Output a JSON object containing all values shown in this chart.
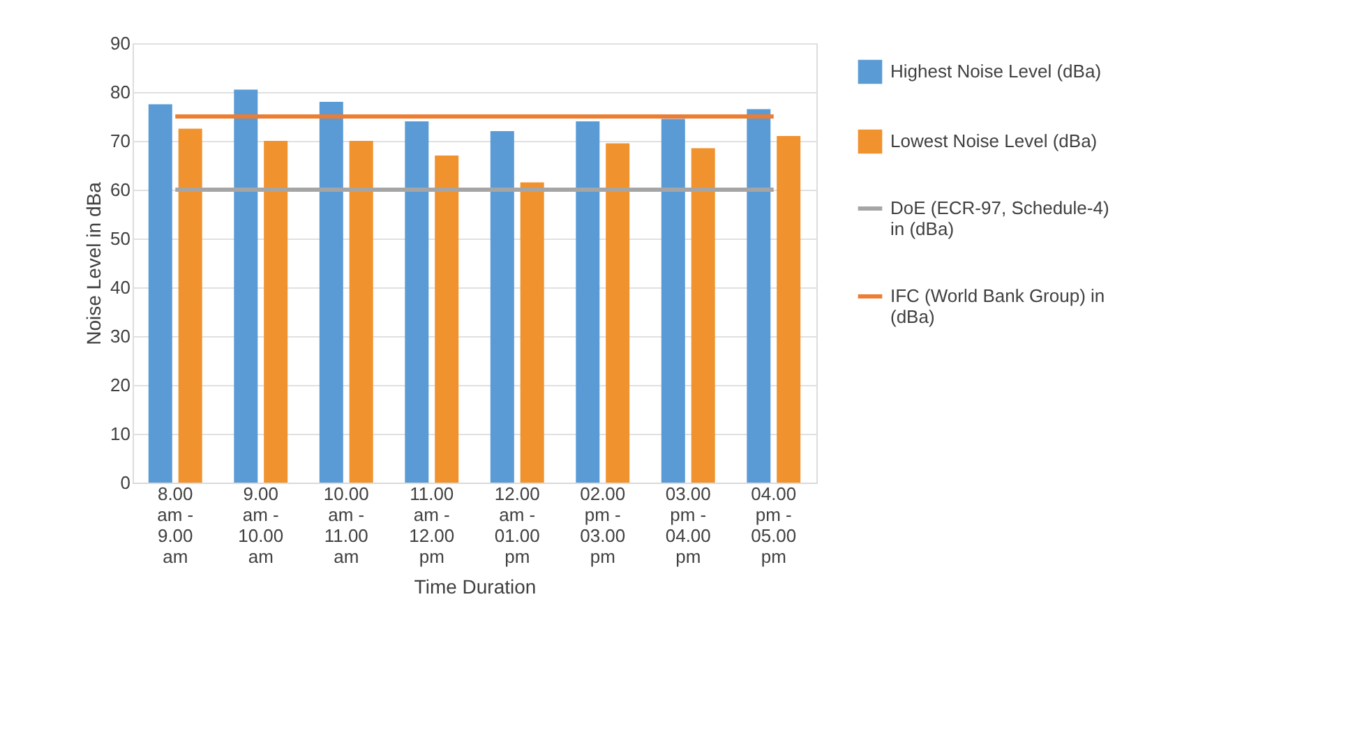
{
  "chart_data": {
    "type": "bar",
    "xlabel": "Time Duration",
    "ylabel": "Noise Level in dBa",
    "categories": [
      "8.00 am - 9.00 am",
      "9.00 am - 10.00 am",
      "10.00 am - 11.00 am",
      "11.00 am - 12.00 pm",
      "12.00 am - 01.00 pm",
      "02.00 pm - 03.00 pm",
      "03.00 pm - 04.00 pm",
      "04.00 pm - 05.00 pm"
    ],
    "series": [
      {
        "name": "Highest Noise Level (dBa)",
        "color": "#5b9bd5",
        "values": [
          77.5,
          80.5,
          78,
          74,
          72,
          74,
          74.5,
          76.5
        ]
      },
      {
        "name": "Lowest Noise Level (dBa)",
        "color": "#f0922e",
        "values": [
          72.5,
          70,
          70,
          67,
          61.5,
          69.5,
          68.5,
          71
        ]
      },
      {
        "name": "DoE (ECR-97, Schedule-4) in (dBa)",
        "type": "line",
        "color": "#a5a5a5",
        "values": [
          60,
          60,
          60,
          60,
          60,
          60,
          60,
          60
        ]
      },
      {
        "name": "IFC (World Bank Group) in (dBa)",
        "type": "line",
        "color": "#ed7d31",
        "values": [
          75,
          75,
          75,
          75,
          75,
          75,
          75,
          75
        ]
      }
    ],
    "ylim": [
      0,
      90
    ],
    "yticks": [
      0,
      10,
      20,
      30,
      40,
      50,
      60,
      70,
      80,
      90
    ],
    "grid": "y",
    "legend": "right"
  }
}
